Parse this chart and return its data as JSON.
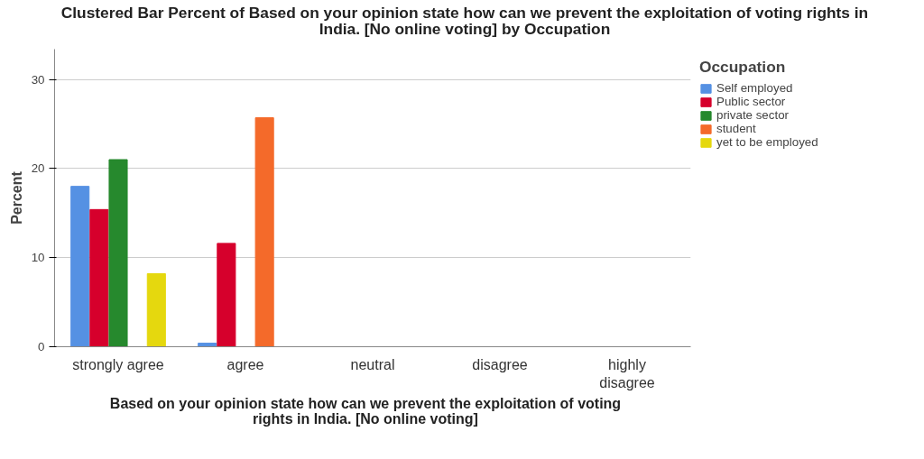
{
  "chart_data": {
    "type": "bar",
    "title": "Clustered Bar Percent of Based on your opinion state how can we prevent the exploitation of voting rights in India. [No online voting] by Occupation",
    "xlabel": "Based on your opinion state how can we prevent the exploitation of voting rights in India. [No online voting]",
    "ylabel": "Percent",
    "legend_title": "Occupation",
    "categories": [
      "strongly agree",
      "agree",
      "neutral",
      "disagree",
      "highly disagree"
    ],
    "series": [
      {
        "name": "Self employed",
        "color": "#5591e3",
        "values": [
          18.0,
          0.4,
          null,
          null,
          null
        ]
      },
      {
        "name": "Public sector",
        "color": "#d6002c",
        "values": [
          15.4,
          11.6,
          null,
          null,
          null
        ]
      },
      {
        "name": "private sector",
        "color": "#26892d",
        "values": [
          21.0,
          null,
          null,
          null,
          null
        ]
      },
      {
        "name": "student",
        "color": "#f46a2a",
        "values": [
          null,
          25.7,
          null,
          null,
          null
        ]
      },
      {
        "name": "yet to be employed",
        "color": "#e5d80e",
        "values": [
          8.2,
          null,
          null,
          null,
          null
        ]
      }
    ],
    "ylim": [
      0,
      33.4
    ],
    "yticks": [
      0,
      10,
      20,
      30
    ],
    "grid": "y",
    "legend": "top right"
  }
}
